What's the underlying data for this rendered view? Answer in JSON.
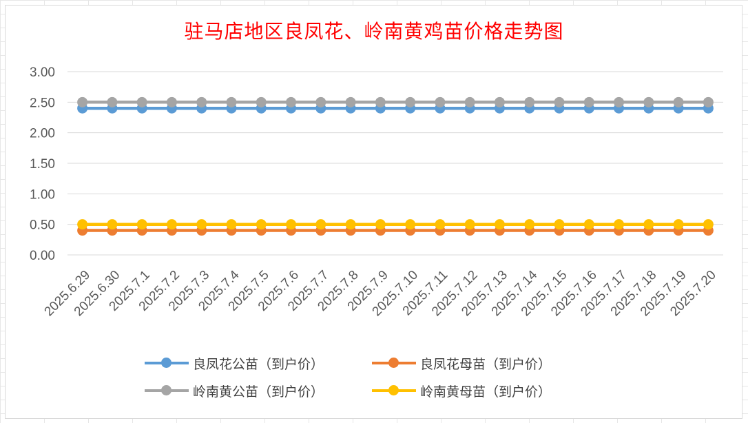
{
  "chart_data": {
    "type": "line",
    "title": "驻马店地区良凤花、岭南黄鸡苗价格走势图",
    "xlabel": "",
    "ylabel": "",
    "ylim": [
      0,
      3
    ],
    "yticks": [
      "0.00",
      "0.50",
      "1.00",
      "1.50",
      "2.00",
      "2.50",
      "3.00"
    ],
    "grid": true,
    "legend_position": "bottom",
    "categories": [
      "2025.6.29",
      "2025.6.30",
      "2025.7.1",
      "2025.7.2",
      "2025.7.3",
      "2025.7.4",
      "2025.7.5",
      "2025.7.6",
      "2025.7.7",
      "2025.7.8",
      "2025.7.9",
      "2025.7.10",
      "2025.7.11",
      "2025.7.12",
      "2025.7.13",
      "2025.7.14",
      "2025.7.15",
      "2025.7.16",
      "2025.7.17",
      "2025.7.18",
      "2025.7.19",
      "2025.7.20"
    ],
    "series": [
      {
        "name": "良凤花公苗（到户价）",
        "color": "#5b9bd5",
        "values": [
          2.4,
          2.4,
          2.4,
          2.4,
          2.4,
          2.4,
          2.4,
          2.4,
          2.4,
          2.4,
          2.4,
          2.4,
          2.4,
          2.4,
          2.4,
          2.4,
          2.4,
          2.4,
          2.4,
          2.4,
          2.4,
          2.4
        ]
      },
      {
        "name": "良凤花母苗（到户价）",
        "color": "#ed7d31",
        "values": [
          0.4,
          0.4,
          0.4,
          0.4,
          0.4,
          0.4,
          0.4,
          0.4,
          0.4,
          0.4,
          0.4,
          0.4,
          0.4,
          0.4,
          0.4,
          0.4,
          0.4,
          0.4,
          0.4,
          0.4,
          0.4,
          0.4
        ]
      },
      {
        "name": "岭南黄公苗（到户价）",
        "color": "#a5a5a5",
        "values": [
          2.5,
          2.5,
          2.5,
          2.5,
          2.5,
          2.5,
          2.5,
          2.5,
          2.5,
          2.5,
          2.5,
          2.5,
          2.5,
          2.5,
          2.5,
          2.5,
          2.5,
          2.5,
          2.5,
          2.5,
          2.5,
          2.5
        ]
      },
      {
        "name": "岭南黄母苗（到户价）",
        "color": "#ffc000",
        "values": [
          0.5,
          0.5,
          0.5,
          0.5,
          0.5,
          0.5,
          0.5,
          0.5,
          0.5,
          0.5,
          0.5,
          0.5,
          0.5,
          0.5,
          0.5,
          0.5,
          0.5,
          0.5,
          0.5,
          0.5,
          0.5,
          0.5
        ]
      }
    ]
  }
}
